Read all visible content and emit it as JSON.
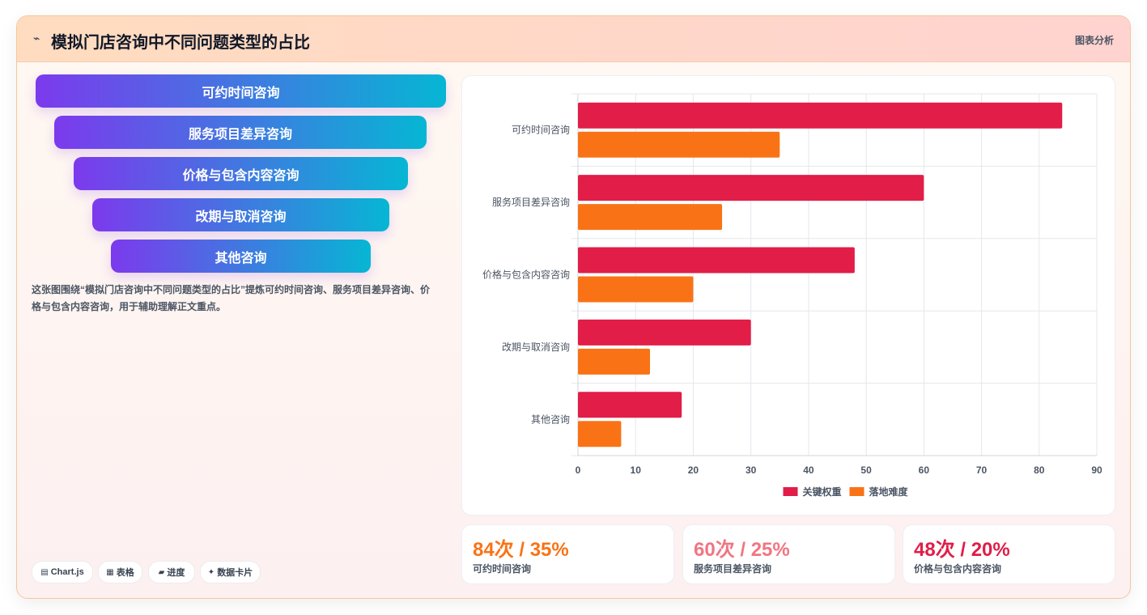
{
  "header": {
    "icon": "chart-line-icon",
    "title": "模拟门店咨询中不同问题类型的占比",
    "tag": "图表分析"
  },
  "funnel": {
    "items": [
      "可约时间咨询",
      "服务项目差异咨询",
      "价格与包含内容咨询",
      "改期与取消咨询",
      "其他咨询"
    ]
  },
  "description": "这张图围绕“模拟门店咨询中不同问题类型的占比”提炼可约时间咨询、服务项目差异咨询、价格与包含内容咨询，用于辅助理解正文重点。",
  "chips": [
    {
      "icon": "chart-icon",
      "label": "Chart.js"
    },
    {
      "icon": "table-icon",
      "label": "表格"
    },
    {
      "icon": "progress-icon",
      "label": "进度"
    },
    {
      "icon": "sparkle-icon",
      "label": "数据卡片"
    }
  ],
  "chart_data": {
    "type": "bar",
    "orientation": "horizontal",
    "categories": [
      "可约时间咨询",
      "服务项目差异咨询",
      "价格与包含内容咨询",
      "改期与取消咨询",
      "其他咨询"
    ],
    "series": [
      {
        "name": "关键权重",
        "color": "#e11d48",
        "values": [
          84,
          60,
          48,
          30,
          18
        ]
      },
      {
        "name": "落地难度",
        "color": "#f97316",
        "values": [
          35,
          25,
          20,
          12.5,
          7.5
        ]
      }
    ],
    "xlim": [
      0,
      90
    ],
    "xticks": [
      0,
      10,
      20,
      30,
      40,
      50,
      60,
      70,
      80,
      90
    ],
    "grid": true,
    "legend": "bottom"
  },
  "stats": [
    {
      "value": "84次 / 35%",
      "label": "可约时间咨询",
      "color": "#f97316"
    },
    {
      "value": "60次 / 25%",
      "label": "服务项目差异咨询",
      "color": "#f17582"
    },
    {
      "value": "48次 / 20%",
      "label": "价格与包含内容咨询",
      "color": "#e11d48"
    }
  ]
}
